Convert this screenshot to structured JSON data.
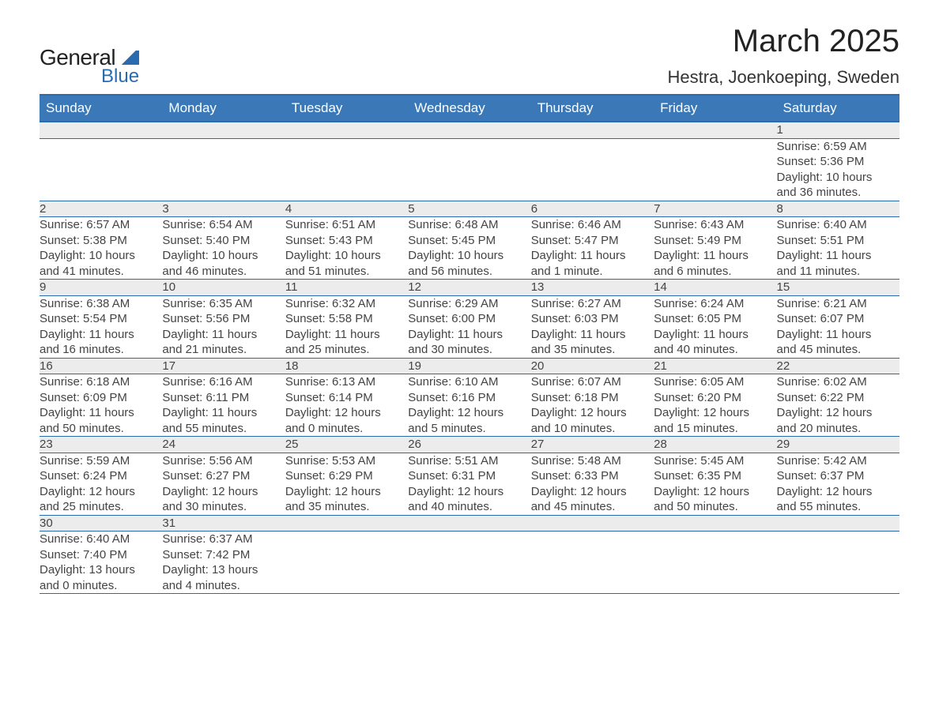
{
  "brand": {
    "text1": "General",
    "text2": "Blue"
  },
  "title": "March 2025",
  "location": "Hestra, Joenkoeping, Sweden",
  "colors": {
    "header_bg": "#3a78b7",
    "header_border": "#2a6bb0",
    "daynum_bg": "#ececec",
    "text": "#444444",
    "brand_blue": "#2a6bb0"
  },
  "weekdays": [
    "Sunday",
    "Monday",
    "Tuesday",
    "Wednesday",
    "Thursday",
    "Friday",
    "Saturday"
  ],
  "weeks": [
    [
      null,
      null,
      null,
      null,
      null,
      null,
      {
        "n": "1",
        "sunrise": "6:59 AM",
        "sunset": "5:36 PM",
        "daylight": "10 hours and 36 minutes."
      }
    ],
    [
      {
        "n": "2",
        "sunrise": "6:57 AM",
        "sunset": "5:38 PM",
        "daylight": "10 hours and 41 minutes."
      },
      {
        "n": "3",
        "sunrise": "6:54 AM",
        "sunset": "5:40 PM",
        "daylight": "10 hours and 46 minutes."
      },
      {
        "n": "4",
        "sunrise": "6:51 AM",
        "sunset": "5:43 PM",
        "daylight": "10 hours and 51 minutes."
      },
      {
        "n": "5",
        "sunrise": "6:48 AM",
        "sunset": "5:45 PM",
        "daylight": "10 hours and 56 minutes."
      },
      {
        "n": "6",
        "sunrise": "6:46 AM",
        "sunset": "5:47 PM",
        "daylight": "11 hours and 1 minute."
      },
      {
        "n": "7",
        "sunrise": "6:43 AM",
        "sunset": "5:49 PM",
        "daylight": "11 hours and 6 minutes."
      },
      {
        "n": "8",
        "sunrise": "6:40 AM",
        "sunset": "5:51 PM",
        "daylight": "11 hours and 11 minutes."
      }
    ],
    [
      {
        "n": "9",
        "sunrise": "6:38 AM",
        "sunset": "5:54 PM",
        "daylight": "11 hours and 16 minutes."
      },
      {
        "n": "10",
        "sunrise": "6:35 AM",
        "sunset": "5:56 PM",
        "daylight": "11 hours and 21 minutes."
      },
      {
        "n": "11",
        "sunrise": "6:32 AM",
        "sunset": "5:58 PM",
        "daylight": "11 hours and 25 minutes."
      },
      {
        "n": "12",
        "sunrise": "6:29 AM",
        "sunset": "6:00 PM",
        "daylight": "11 hours and 30 minutes."
      },
      {
        "n": "13",
        "sunrise": "6:27 AM",
        "sunset": "6:03 PM",
        "daylight": "11 hours and 35 minutes."
      },
      {
        "n": "14",
        "sunrise": "6:24 AM",
        "sunset": "6:05 PM",
        "daylight": "11 hours and 40 minutes."
      },
      {
        "n": "15",
        "sunrise": "6:21 AM",
        "sunset": "6:07 PM",
        "daylight": "11 hours and 45 minutes."
      }
    ],
    [
      {
        "n": "16",
        "sunrise": "6:18 AM",
        "sunset": "6:09 PM",
        "daylight": "11 hours and 50 minutes."
      },
      {
        "n": "17",
        "sunrise": "6:16 AM",
        "sunset": "6:11 PM",
        "daylight": "11 hours and 55 minutes."
      },
      {
        "n": "18",
        "sunrise": "6:13 AM",
        "sunset": "6:14 PM",
        "daylight": "12 hours and 0 minutes."
      },
      {
        "n": "19",
        "sunrise": "6:10 AM",
        "sunset": "6:16 PM",
        "daylight": "12 hours and 5 minutes."
      },
      {
        "n": "20",
        "sunrise": "6:07 AM",
        "sunset": "6:18 PM",
        "daylight": "12 hours and 10 minutes."
      },
      {
        "n": "21",
        "sunrise": "6:05 AM",
        "sunset": "6:20 PM",
        "daylight": "12 hours and 15 minutes."
      },
      {
        "n": "22",
        "sunrise": "6:02 AM",
        "sunset": "6:22 PM",
        "daylight": "12 hours and 20 minutes."
      }
    ],
    [
      {
        "n": "23",
        "sunrise": "5:59 AM",
        "sunset": "6:24 PM",
        "daylight": "12 hours and 25 minutes."
      },
      {
        "n": "24",
        "sunrise": "5:56 AM",
        "sunset": "6:27 PM",
        "daylight": "12 hours and 30 minutes."
      },
      {
        "n": "25",
        "sunrise": "5:53 AM",
        "sunset": "6:29 PM",
        "daylight": "12 hours and 35 minutes."
      },
      {
        "n": "26",
        "sunrise": "5:51 AM",
        "sunset": "6:31 PM",
        "daylight": "12 hours and 40 minutes."
      },
      {
        "n": "27",
        "sunrise": "5:48 AM",
        "sunset": "6:33 PM",
        "daylight": "12 hours and 45 minutes."
      },
      {
        "n": "28",
        "sunrise": "5:45 AM",
        "sunset": "6:35 PM",
        "daylight": "12 hours and 50 minutes."
      },
      {
        "n": "29",
        "sunrise": "5:42 AM",
        "sunset": "6:37 PM",
        "daylight": "12 hours and 55 minutes."
      }
    ],
    [
      {
        "n": "30",
        "sunrise": "6:40 AM",
        "sunset": "7:40 PM",
        "daylight": "13 hours and 0 minutes."
      },
      {
        "n": "31",
        "sunrise": "6:37 AM",
        "sunset": "7:42 PM",
        "daylight": "13 hours and 4 minutes."
      },
      null,
      null,
      null,
      null,
      null
    ]
  ],
  "labels": {
    "sunrise": "Sunrise: ",
    "sunset": "Sunset: ",
    "daylight": "Daylight: "
  }
}
